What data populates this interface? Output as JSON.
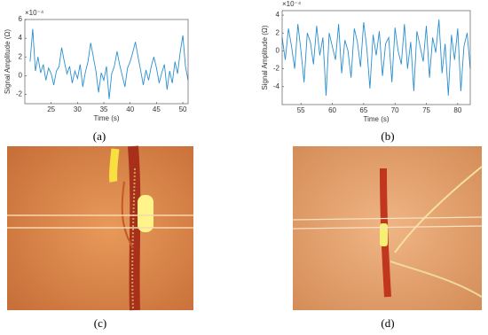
{
  "chart_data": [
    {
      "type": "line",
      "x_label": "Time (s)",
      "y_label": "Signal Amplitude (Ω)",
      "y_exponent": "×10⁻⁴",
      "color": "#2a8fd0",
      "xlim": [
        20,
        51
      ],
      "xticks": [
        25,
        30,
        35,
        40,
        45,
        50
      ],
      "ylim": [
        -3,
        6
      ],
      "yticks": [
        -2,
        0,
        2,
        4,
        6
      ],
      "x": [
        21,
        21.5,
        22,
        22.5,
        23,
        23.5,
        24,
        24.5,
        25,
        25.5,
        26,
        26.5,
        27,
        27.5,
        28,
        28.5,
        29,
        29.5,
        30,
        30.5,
        31,
        31.5,
        32,
        32.5,
        33,
        33.5,
        34,
        34.5,
        35,
        35.5,
        36,
        36.5,
        37,
        37.5,
        38,
        38.5,
        39,
        39.5,
        40,
        40.5,
        41,
        41.5,
        42,
        42.5,
        43,
        43.5,
        44,
        44.5,
        45,
        45.5,
        46,
        46.5,
        47,
        47.5,
        48,
        48.5,
        49,
        49.5,
        50,
        50.5,
        51
      ],
      "values": [
        1.5,
        5.0,
        0.5,
        2.0,
        0.3,
        1.2,
        -0.5,
        0.8,
        0.2,
        -1.0,
        0.5,
        1.0,
        3.0,
        1.5,
        0.2,
        1.0,
        -0.8,
        0.5,
        -0.3,
        1.2,
        -1.2,
        0.4,
        1.5,
        3.5,
        2.0,
        0.5,
        -1.8,
        0.3,
        -0.5,
        1.0,
        -2.5,
        0.2,
        1.0,
        2.6,
        1.2,
        0.0,
        -1.2,
        0.8,
        1.5,
        2.5,
        3.6,
        2.0,
        0.5,
        -1.0,
        0.6,
        -0.5,
        1.0,
        2.0,
        0.8,
        -0.8,
        0.3,
        1.2,
        -1.5,
        0.5,
        -0.8,
        1.5,
        0.2,
        2.5,
        4.3,
        1.0,
        -0.5
      ]
    },
    {
      "type": "line",
      "x_label": "Time (s)",
      "y_label": "Signal Amplitude (Ω)",
      "y_exponent": "×10⁻⁴",
      "color": "#2a8fd0",
      "xlim": [
        52,
        82
      ],
      "xticks": [
        55,
        60,
        65,
        70,
        75,
        80
      ],
      "ylim": [
        -6,
        4.5
      ],
      "yticks": [
        -4,
        -2,
        0,
        2,
        4
      ],
      "x": [
        52,
        52.5,
        53,
        53.5,
        54,
        54.5,
        55,
        55.5,
        56,
        56.5,
        57,
        57.5,
        58,
        58.5,
        59,
        59.5,
        60,
        60.5,
        61,
        61.5,
        62,
        62.5,
        63,
        63.5,
        64,
        64.5,
        65,
        65.5,
        66,
        66.5,
        67,
        67.5,
        68,
        68.5,
        69,
        69.5,
        70,
        70.5,
        71,
        71.5,
        72,
        72.5,
        73,
        73.5,
        74,
        74.5,
        75,
        75.5,
        76,
        76.5,
        77,
        77.5,
        78,
        78.5,
        79,
        79.5,
        80,
        80.5,
        81,
        81.5,
        82
      ],
      "values": [
        1.5,
        -1.0,
        2.5,
        0.5,
        -2.0,
        3.0,
        0.0,
        -3.5,
        2.0,
        1.0,
        -1.5,
        2.8,
        -0.5,
        1.5,
        -5.0,
        2.0,
        0.5,
        -1.0,
        3.0,
        -2.5,
        1.2,
        0.0,
        -3.0,
        2.5,
        1.0,
        -1.8,
        3.2,
        0.3,
        -4.2,
        1.8,
        -0.5,
        2.2,
        -2.8,
        0.8,
        1.5,
        -3.5,
        2.6,
        0.0,
        -1.5,
        3.0,
        -2.0,
        1.0,
        -4.5,
        2.2,
        0.5,
        -1.2,
        2.8,
        -3.0,
        1.5,
        -0.2,
        3.5,
        -2.5,
        0.8,
        -5.0,
        1.8,
        -1.0,
        2.5,
        -4.5,
        0.5,
        2.0,
        -2.0
      ]
    }
  ],
  "captions": [
    "(a)",
    "(b)",
    "(c)",
    "(d)"
  ]
}
